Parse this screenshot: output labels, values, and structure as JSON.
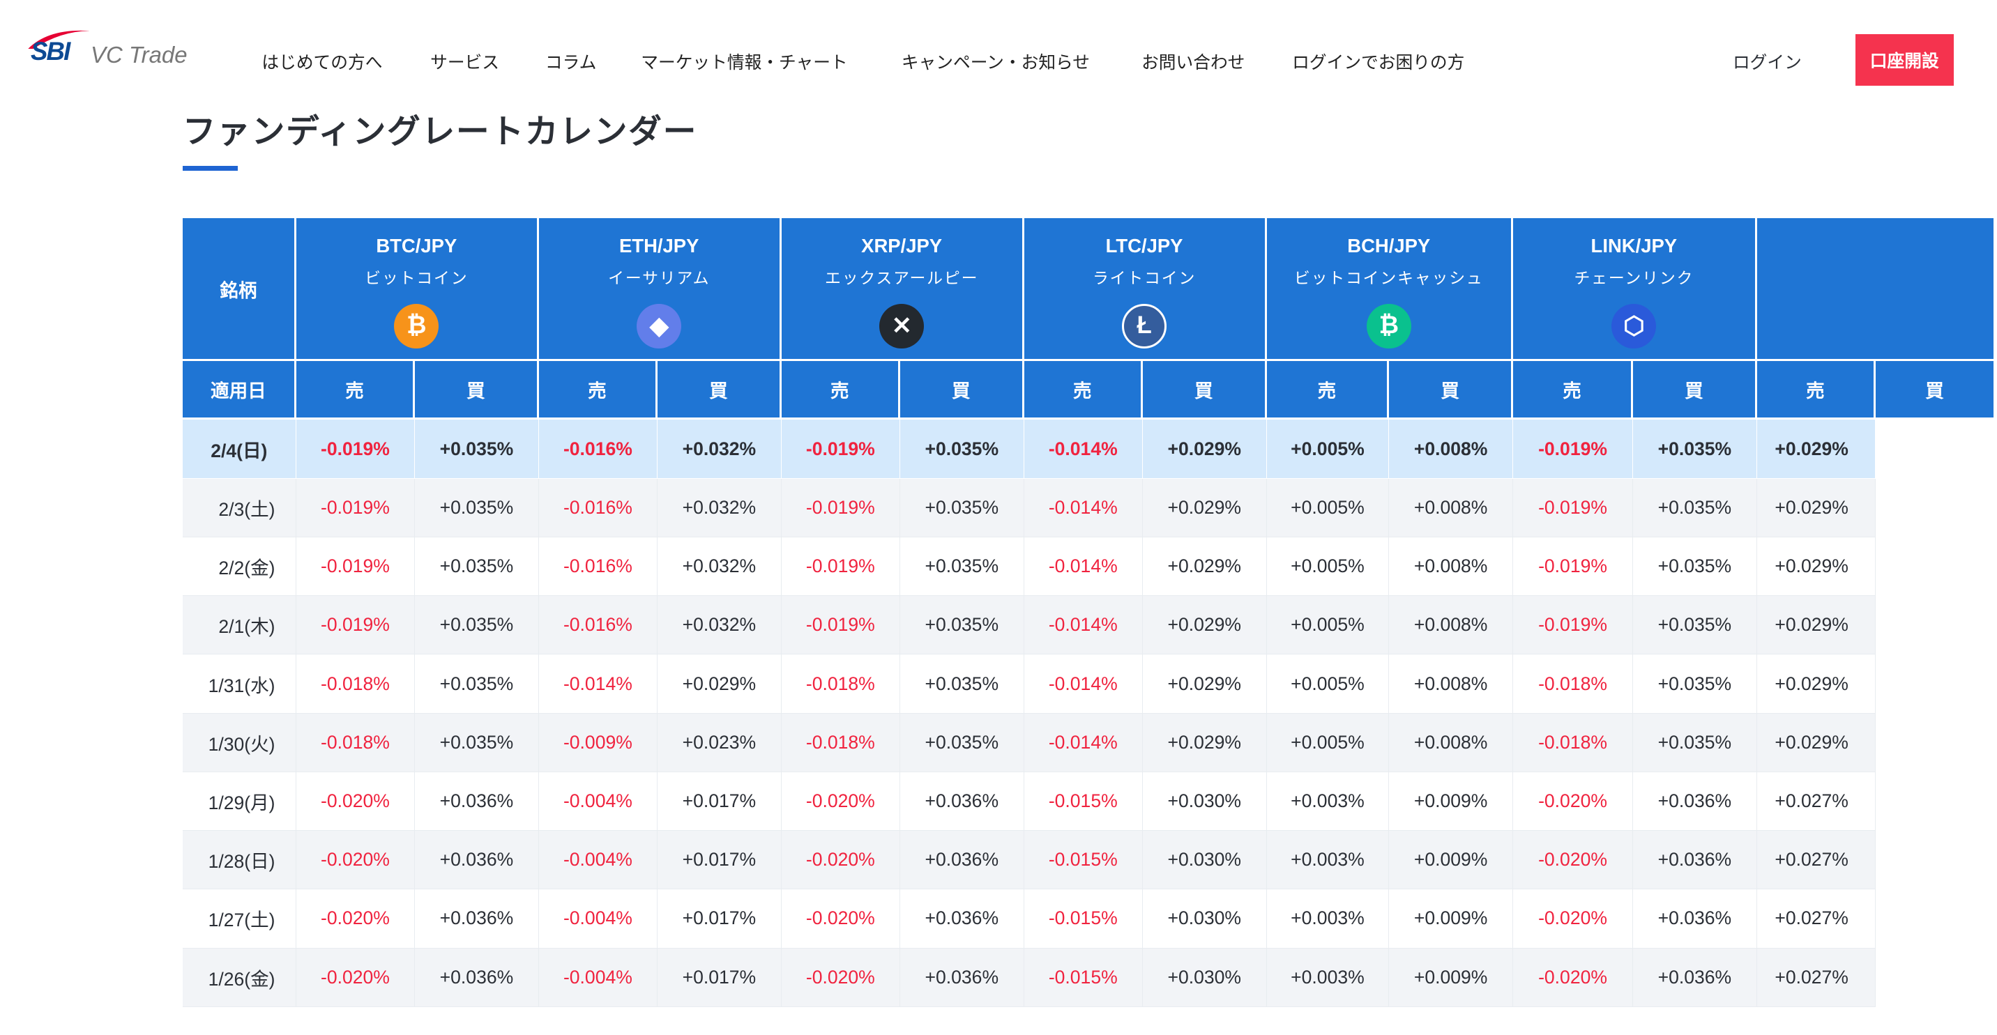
{
  "header": {
    "logo_text": "SBI VC Trade",
    "nav": [
      "はじめての方へ",
      "サービス",
      "コラム",
      "マーケット情報・チャート",
      "キャンペーン・お知らせ",
      "お問い合わせ",
      "ログインでお困りの方"
    ],
    "login": "ログイン",
    "open_account": "口座開設",
    "accent": "#f5334e"
  },
  "page_title": "ファンディングレートカレンダー",
  "table": {
    "symbol_header": "銘柄",
    "date_header": "適用日",
    "sell": "売",
    "buy": "買",
    "header_color": "#1f75d4",
    "coins": [
      {
        "pair": "BTC/JPY",
        "name": "ビットコイン",
        "icon": "bitcoin-icon",
        "color": "#f7931a",
        "glyph": "₿"
      },
      {
        "pair": "ETH/JPY",
        "name": "イーサリアム",
        "icon": "ethereum-icon",
        "color": "#627eea",
        "glyph": "◆"
      },
      {
        "pair": "XRP/JPY",
        "name": "エックスアールピー",
        "icon": "xrp-icon",
        "color": "#23292f",
        "glyph": "✕"
      },
      {
        "pair": "LTC/JPY",
        "name": "ライトコイン",
        "icon": "litecoin-icon",
        "color": "#345d9d",
        "glyph": "Ł"
      },
      {
        "pair": "BCH/JPY",
        "name": "ビットコインキャッシュ",
        "icon": "bitcoin-cash-icon",
        "color": "#0ac18e",
        "glyph": "₿"
      },
      {
        "pair": "LINK/JPY",
        "name": "チェーンリンク",
        "icon": "chainlink-icon",
        "color": "#2a5ada",
        "glyph": "⬡"
      },
      {
        "pair": "",
        "name": "",
        "icon": "",
        "color": "#1f75d4",
        "glyph": ""
      }
    ],
    "rows": [
      {
        "date": "2/4(日)",
        "values": [
          "-0.019%",
          "+0.035%",
          "-0.016%",
          "+0.032%",
          "-0.019%",
          "+0.035%",
          "-0.014%",
          "+0.029%",
          "+0.005%",
          "+0.008%",
          "-0.019%",
          "+0.035%",
          "+0.029%"
        ]
      },
      {
        "date": "2/3(土)",
        "values": [
          "-0.019%",
          "+0.035%",
          "-0.016%",
          "+0.032%",
          "-0.019%",
          "+0.035%",
          "-0.014%",
          "+0.029%",
          "+0.005%",
          "+0.008%",
          "-0.019%",
          "+0.035%",
          "+0.029%"
        ]
      },
      {
        "date": "2/2(金)",
        "values": [
          "-0.019%",
          "+0.035%",
          "-0.016%",
          "+0.032%",
          "-0.019%",
          "+0.035%",
          "-0.014%",
          "+0.029%",
          "+0.005%",
          "+0.008%",
          "-0.019%",
          "+0.035%",
          "+0.029%"
        ]
      },
      {
        "date": "2/1(木)",
        "values": [
          "-0.019%",
          "+0.035%",
          "-0.016%",
          "+0.032%",
          "-0.019%",
          "+0.035%",
          "-0.014%",
          "+0.029%",
          "+0.005%",
          "+0.008%",
          "-0.019%",
          "+0.035%",
          "+0.029%"
        ]
      },
      {
        "date": "1/31(水)",
        "values": [
          "-0.018%",
          "+0.035%",
          "-0.014%",
          "+0.029%",
          "-0.018%",
          "+0.035%",
          "-0.014%",
          "+0.029%",
          "+0.005%",
          "+0.008%",
          "-0.018%",
          "+0.035%",
          "+0.029%"
        ]
      },
      {
        "date": "1/30(火)",
        "values": [
          "-0.018%",
          "+0.035%",
          "-0.009%",
          "+0.023%",
          "-0.018%",
          "+0.035%",
          "-0.014%",
          "+0.029%",
          "+0.005%",
          "+0.008%",
          "-0.018%",
          "+0.035%",
          "+0.029%"
        ]
      },
      {
        "date": "1/29(月)",
        "values": [
          "-0.020%",
          "+0.036%",
          "-0.004%",
          "+0.017%",
          "-0.020%",
          "+0.036%",
          "-0.015%",
          "+0.030%",
          "+0.003%",
          "+0.009%",
          "-0.020%",
          "+0.036%",
          "+0.027%"
        ]
      },
      {
        "date": "1/28(日)",
        "values": [
          "-0.020%",
          "+0.036%",
          "-0.004%",
          "+0.017%",
          "-0.020%",
          "+0.036%",
          "-0.015%",
          "+0.030%",
          "+0.003%",
          "+0.009%",
          "-0.020%",
          "+0.036%",
          "+0.027%"
        ]
      },
      {
        "date": "1/27(土)",
        "values": [
          "-0.020%",
          "+0.036%",
          "-0.004%",
          "+0.017%",
          "-0.020%",
          "+0.036%",
          "-0.015%",
          "+0.030%",
          "+0.003%",
          "+0.009%",
          "-0.020%",
          "+0.036%",
          "+0.027%"
        ]
      },
      {
        "date": "1/26(金)",
        "values": [
          "-0.020%",
          "+0.036%",
          "-0.004%",
          "+0.017%",
          "-0.020%",
          "+0.036%",
          "-0.015%",
          "+0.030%",
          "+0.003%",
          "+0.009%",
          "-0.020%",
          "+0.036%",
          "+0.027%"
        ]
      }
    ]
  }
}
